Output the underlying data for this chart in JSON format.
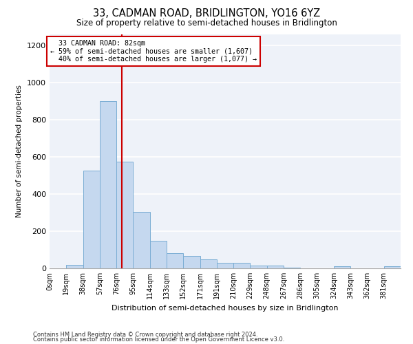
{
  "title1": "33, CADMAN ROAD, BRIDLINGTON, YO16 6YZ",
  "title2": "Size of property relative to semi-detached houses in Bridlington",
  "xlabel": "Distribution of semi-detached houses by size in Bridlington",
  "ylabel": "Number of semi-detached properties",
  "footer1": "Contains HM Land Registry data © Crown copyright and database right 2024.",
  "footer2": "Contains public sector information licensed under the Open Government Licence v3.0.",
  "bar_labels": [
    "0sqm",
    "19sqm",
    "38sqm",
    "57sqm",
    "76sqm",
    "95sqm",
    "114sqm",
    "133sqm",
    "152sqm",
    "171sqm",
    "191sqm",
    "210sqm",
    "229sqm",
    "248sqm",
    "267sqm",
    "286sqm",
    "305sqm",
    "324sqm",
    "343sqm",
    "362sqm",
    "381sqm"
  ],
  "bar_values": [
    0,
    20,
    525,
    900,
    575,
    305,
    148,
    80,
    65,
    50,
    30,
    30,
    15,
    13,
    5,
    0,
    0,
    10,
    0,
    0,
    10
  ],
  "bar_color": "#c5d8ef",
  "bar_edge_color": "#7aadd4",
  "property_label": "33 CADMAN ROAD: 82sqm",
  "pct_smaller": 59,
  "pct_larger": 40,
  "n_smaller": 1607,
  "n_larger": 1077,
  "vline_x": 82,
  "vline_color": "#cc0000",
  "annotation_box_color": "#cc0000",
  "ylim": [
    0,
    1260
  ],
  "bin_width": 19,
  "background_color": "#eef2f9"
}
